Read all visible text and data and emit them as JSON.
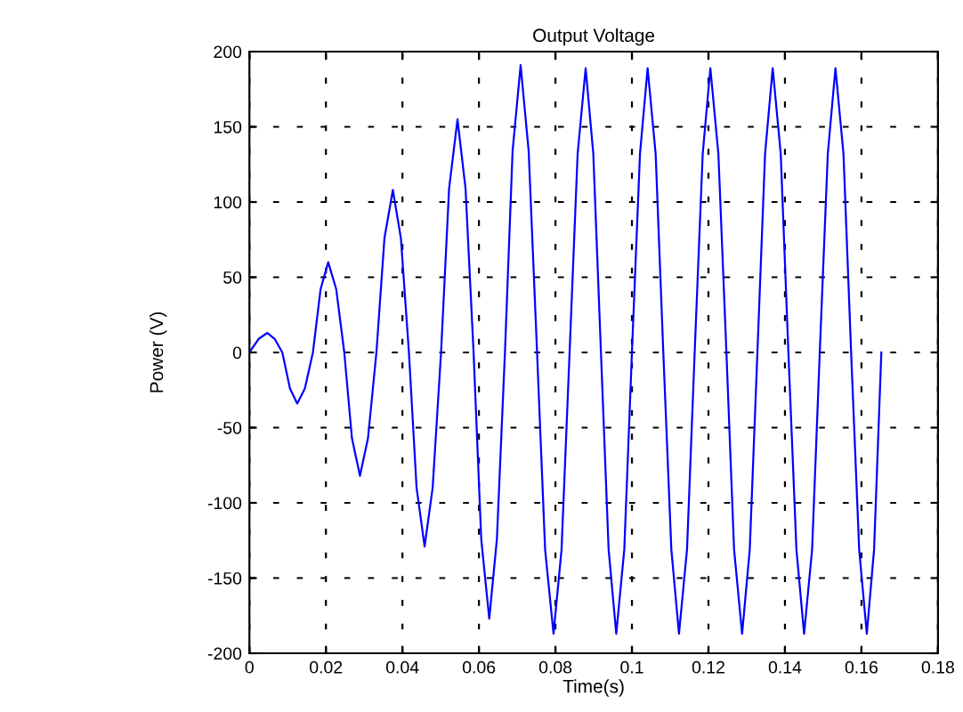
{
  "chart_data": {
    "type": "line",
    "title": "Output Voltage",
    "xlabel": "Time(s)",
    "ylabel": "Power (V)",
    "xlim": [
      0,
      0.18
    ],
    "xticks": [
      0,
      0.02,
      0.04,
      0.06,
      0.08,
      0.1,
      0.12,
      0.14,
      0.16,
      0.18
    ],
    "ylim": [
      -200,
      200
    ],
    "yticks": [
      -200,
      -150,
      -100,
      -50,
      0,
      50,
      100,
      150,
      200
    ],
    "grid": true,
    "marker": "none",
    "line_style": "solid",
    "series": [
      {
        "color": "#0000ff",
        "x": [
          0,
          0.0024,
          0.0047,
          0.0066,
          0.0086,
          0.0106,
          0.0125,
          0.0145,
          0.0166,
          0.0186,
          0.0206,
          0.0227,
          0.0248,
          0.0268,
          0.0289,
          0.031,
          0.0332,
          0.0353,
          0.0375,
          0.0396,
          0.0417,
          0.0437,
          0.0458,
          0.0479,
          0.0501,
          0.0522,
          0.0544,
          0.0565,
          0.0586,
          0.0606,
          0.0627,
          0.0647,
          0.0668,
          0.0688,
          0.0709,
          0.073,
          0.0752,
          0.0773,
          0.0795,
          0.0816,
          0.0837,
          0.0858,
          0.0879,
          0.0899,
          0.0919,
          0.0939,
          0.0959,
          0.098,
          0.1,
          0.1021,
          0.1041,
          0.1062,
          0.1082,
          0.1103,
          0.1123,
          0.1144,
          0.1164,
          0.1185,
          0.1205,
          0.1226,
          0.1247,
          0.1267,
          0.1288,
          0.1308,
          0.1328,
          0.1348,
          0.1368,
          0.1389,
          0.1409,
          0.143,
          0.145,
          0.1471,
          0.1491,
          0.1512,
          0.1532,
          0.1553,
          0.1573,
          0.1594,
          0.1614,
          0.1633,
          0.1652
        ],
        "values": [
          0,
          9,
          13,
          9,
          0,
          -24,
          -34,
          -24,
          0,
          42,
          60,
          42,
          0,
          -57,
          -82,
          -57,
          0,
          76,
          108,
          76,
          0,
          -90,
          -129,
          -90,
          0,
          109,
          155,
          109,
          0,
          -124,
          -177,
          -124,
          0,
          134,
          191,
          134,
          0,
          -131,
          -187,
          -131,
          0,
          132,
          189,
          132,
          0,
          -131,
          -187,
          -131,
          0,
          132,
          189,
          132,
          0,
          -131,
          -187,
          -131,
          0,
          132,
          189,
          132,
          0,
          -131,
          -187,
          -131,
          0,
          132,
          189,
          132,
          0,
          -131,
          -187,
          -131,
          0,
          132,
          189,
          132,
          0,
          -131,
          -187,
          -131,
          0
        ]
      }
    ]
  }
}
